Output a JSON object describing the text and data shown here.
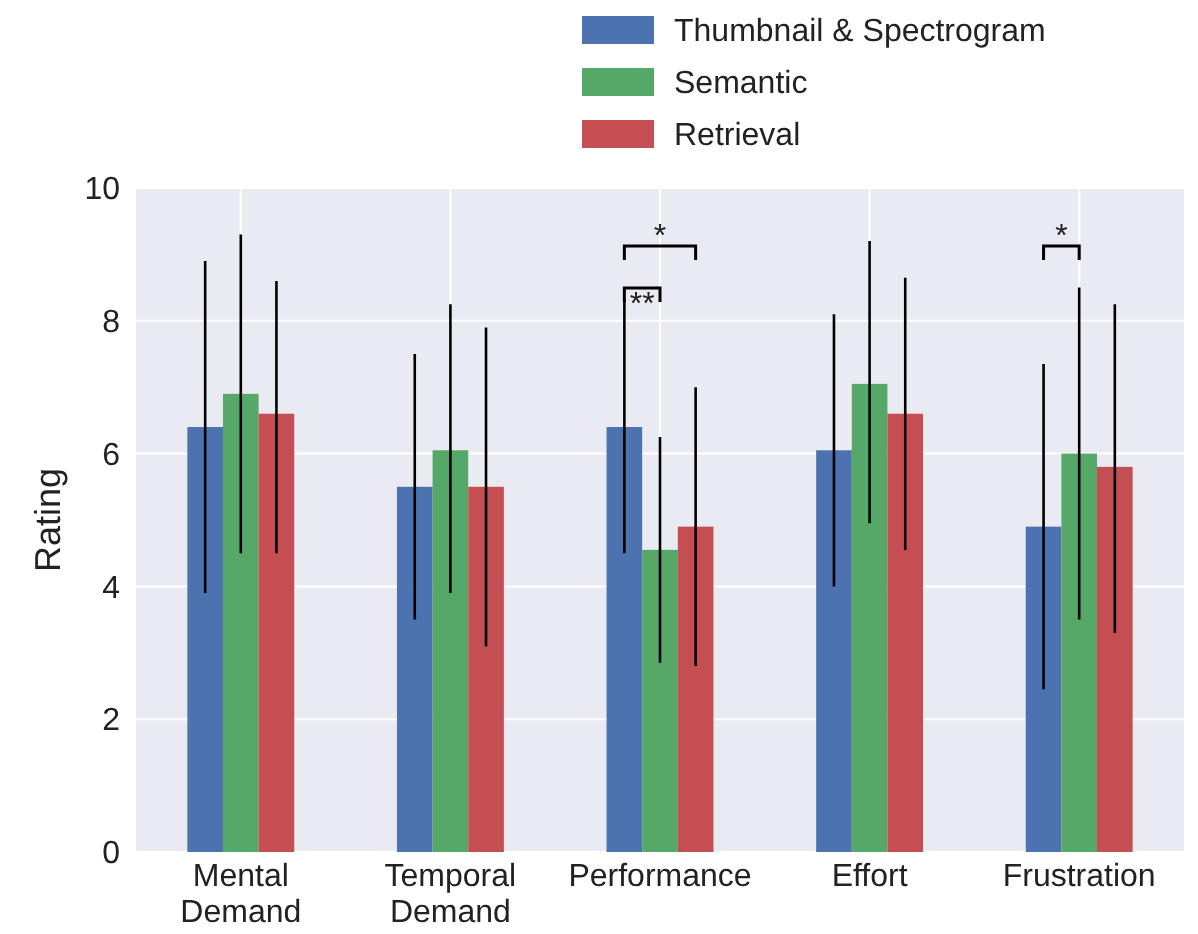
{
  "chart_data": {
    "type": "bar",
    "ylabel": "Rating",
    "categories": [
      "Mental\nDemand",
      "Temporal\nDemand",
      "Performance",
      "Effort",
      "Frustration"
    ],
    "series": [
      {
        "name": "Thumbnail & Spectrogram",
        "color": "#4c72b0",
        "values": [
          6.4,
          5.5,
          6.4,
          6.05,
          4.9
        ],
        "errors": [
          [
            3.9,
            8.9
          ],
          [
            3.5,
            7.5
          ],
          [
            4.5,
            8.3
          ],
          [
            4.0,
            8.1
          ],
          [
            2.45,
            7.35
          ]
        ]
      },
      {
        "name": "Semantic",
        "color": "#55a868",
        "values": [
          6.9,
          6.05,
          4.55,
          7.05,
          6.0
        ],
        "errors": [
          [
            4.5,
            9.3
          ],
          [
            3.9,
            8.25
          ],
          [
            2.85,
            6.25
          ],
          [
            4.95,
            9.2
          ],
          [
            3.5,
            8.5
          ]
        ]
      },
      {
        "name": "Retrieval",
        "color": "#c44e52",
        "values": [
          6.6,
          5.5,
          4.9,
          6.6,
          5.8
        ],
        "errors": [
          [
            4.5,
            8.6
          ],
          [
            3.1,
            7.9
          ],
          [
            2.8,
            7.0
          ],
          [
            4.55,
            8.65
          ],
          [
            3.3,
            8.25
          ]
        ]
      }
    ],
    "ylim": [
      0,
      10
    ],
    "yticks": [
      0,
      2,
      4,
      6,
      8,
      10
    ],
    "grid": true,
    "legend": "top right",
    "annotations": [
      "**",
      "*",
      "*"
    ]
  }
}
